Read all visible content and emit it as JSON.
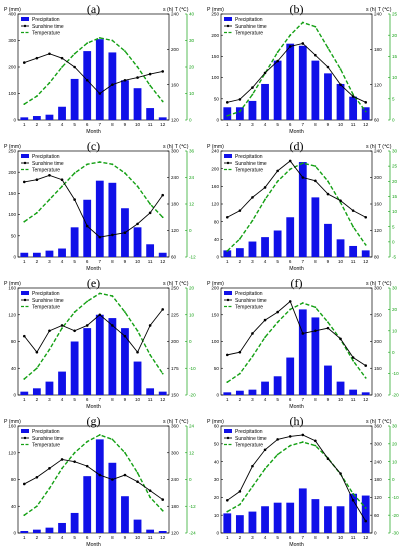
{
  "colors": {
    "precip": "#1010e8",
    "sunshine": "#000000",
    "temperature": "#14a014",
    "axis_left": "#000000",
    "axis_s": "#000000",
    "axis_t": "#14a014"
  },
  "legend": {
    "precipitation": "Precipitation",
    "sunshine": "Sunshine time",
    "temperature": "Temperature"
  },
  "axis_titles": {
    "left": "P (mm)",
    "right": "s (h) T (℃)",
    "x": "Month"
  },
  "chart_data": [
    {
      "type": "bar",
      "title": "(a)",
      "xlabel": "Month",
      "ylabel": "P (mm)",
      "y2label": "s (h)",
      "y3label": "T (℃)",
      "categories": [
        "1",
        "2",
        "3",
        "4",
        "5",
        "6",
        "7",
        "8",
        "9",
        "10",
        "11",
        "12"
      ],
      "p_ticks": [
        0,
        100,
        200,
        300,
        400
      ],
      "p_lim": [
        0,
        400
      ],
      "s_ticks": [
        120,
        160,
        200,
        240
      ],
      "s_lim": [
        120,
        240
      ],
      "t_ticks": [
        0,
        10,
        20,
        30,
        40
      ],
      "t_lim": [
        0,
        40
      ],
      "legend_position": "top-left",
      "series": [
        {
          "name": "Precipitation",
          "kind": "bar",
          "axis": "p",
          "values": [
            10,
            15,
            20,
            50,
            155,
            260,
            305,
            255,
            150,
            120,
            45,
            10
          ]
        },
        {
          "name": "Sunshine time",
          "kind": "line",
          "axis": "s",
          "values": [
            185,
            190,
            195,
            190,
            180,
            165,
            150,
            160,
            165,
            168,
            172,
            175
          ]
        },
        {
          "name": "Temperature",
          "kind": "line",
          "axis": "t",
          "values": [
            6,
            9,
            14,
            20,
            25,
            29,
            31,
            30,
            26,
            20,
            13,
            7
          ]
        }
      ]
    },
    {
      "type": "bar",
      "title": "(b)",
      "xlabel": "Month",
      "ylabel": "P (mm)",
      "y2label": "s (h)",
      "y3label": "T (℃)",
      "categories": [
        "1",
        "2",
        "3",
        "4",
        "5",
        "6",
        "7",
        "8",
        "9",
        "10",
        "11",
        "12"
      ],
      "p_ticks": [
        0,
        50,
        100,
        150,
        200,
        250
      ],
      "p_lim": [
        0,
        250
      ],
      "s_ticks": [
        60,
        120,
        180,
        240
      ],
      "s_lim": [
        60,
        240
      ],
      "t_ticks": [
        0,
        5,
        10,
        15,
        20,
        25
      ],
      "t_lim": [
        0,
        25
      ],
      "legend_position": "top-left",
      "series": [
        {
          "name": "Precipitation",
          "kind": "bar",
          "axis": "p",
          "values": [
            30,
            30,
            45,
            85,
            140,
            180,
            175,
            140,
            110,
            85,
            55,
            30
          ]
        },
        {
          "name": "Sunshine time",
          "kind": "line",
          "axis": "s",
          "values": [
            90,
            95,
            115,
            140,
            160,
            185,
            190,
            170,
            150,
            120,
            100,
            90
          ]
        },
        {
          "name": "Temperature",
          "kind": "line",
          "axis": "t",
          "values": [
            1,
            2,
            6,
            11,
            16,
            20,
            23,
            22,
            17,
            12,
            6,
            2
          ]
        }
      ]
    },
    {
      "type": "bar",
      "title": "(c)",
      "xlabel": "Month",
      "ylabel": "P (mm)",
      "y2label": "s (h)",
      "y3label": "T (℃)",
      "categories": [
        "1",
        "2",
        "3",
        "4",
        "5",
        "6",
        "7",
        "8",
        "9",
        "10",
        "11",
        "12"
      ],
      "p_ticks": [
        0,
        50,
        100,
        150,
        200,
        250
      ],
      "p_lim": [
        0,
        250
      ],
      "s_ticks": [
        60,
        120,
        180,
        240,
        300
      ],
      "s_lim": [
        60,
        300
      ],
      "t_ticks": [
        -12,
        0,
        12,
        24,
        36
      ],
      "t_lim": [
        -12,
        36
      ],
      "legend_position": "top-left",
      "series": [
        {
          "name": "Precipitation",
          "kind": "bar",
          "axis": "p",
          "values": [
            10,
            10,
            15,
            20,
            70,
            135,
            180,
            175,
            115,
            70,
            30,
            10
          ]
        },
        {
          "name": "Sunshine time",
          "kind": "line",
          "axis": "s",
          "values": [
            230,
            235,
            245,
            235,
            190,
            130,
            105,
            110,
            115,
            135,
            160,
            200
          ]
        },
        {
          "name": "Temperature",
          "kind": "line",
          "axis": "t",
          "values": [
            4,
            8,
            14,
            20,
            26,
            30,
            31,
            30,
            26,
            20,
            12,
            6
          ]
        }
      ]
    },
    {
      "type": "bar",
      "title": "(d)",
      "xlabel": "Month",
      "ylabel": "P (mm)",
      "y2label": "s (h)",
      "y3label": "T (℃)",
      "categories": [
        "1",
        "2",
        "3",
        "4",
        "5",
        "6",
        "7",
        "8",
        "9",
        "10",
        "11",
        "12"
      ],
      "p_ticks": [
        0,
        40,
        80,
        120,
        160,
        200,
        240
      ],
      "p_lim": [
        0,
        240
      ],
      "s_ticks": [
        80,
        120,
        160,
        200,
        240
      ],
      "s_lim": [
        80,
        240
      ],
      "t_ticks": [
        -5,
        0,
        5,
        10,
        15,
        20,
        25,
        30
      ],
      "t_lim": [
        -5,
        30
      ],
      "legend_position": "top-left",
      "series": [
        {
          "name": "Precipitation",
          "kind": "bar",
          "axis": "p",
          "values": [
            15,
            20,
            35,
            45,
            60,
            90,
            215,
            135,
            75,
            40,
            25,
            15
          ]
        },
        {
          "name": "Sunshine time",
          "kind": "line",
          "axis": "s",
          "values": [
            140,
            150,
            170,
            185,
            210,
            225,
            200,
            195,
            175,
            165,
            150,
            140
          ]
        },
        {
          "name": "Temperature",
          "kind": "line",
          "axis": "t",
          "values": [
            -3,
            1,
            7,
            14,
            20,
            24,
            26,
            25,
            20,
            13,
            5,
            -1
          ]
        }
      ]
    },
    {
      "type": "bar",
      "title": "(e)",
      "xlabel": "Month",
      "ylabel": "P (mm)",
      "y2label": "s (h)",
      "y3label": "T (℃)",
      "categories": [
        "1",
        "2",
        "3",
        "4",
        "5",
        "6",
        "7",
        "8",
        "9",
        "10",
        "11",
        "12"
      ],
      "p_ticks": [
        0,
        40,
        80,
        120,
        160
      ],
      "p_lim": [
        0,
        160
      ],
      "s_ticks": [
        150,
        175,
        200,
        225,
        250
      ],
      "s_lim": [
        150,
        250
      ],
      "t_ticks": [
        -20,
        -10,
        0,
        10,
        20
      ],
      "t_lim": [
        -20,
        20
      ],
      "legend_position": "top-left",
      "series": [
        {
          "name": "Precipitation",
          "kind": "bar",
          "axis": "p",
          "values": [
            5,
            10,
            20,
            35,
            80,
            100,
            120,
            115,
            100,
            50,
            10,
            5
          ]
        },
        {
          "name": "Sunshine time",
          "kind": "line",
          "axis": "s",
          "values": [
            205,
            190,
            210,
            215,
            210,
            215,
            225,
            215,
            205,
            190,
            215,
            230
          ]
        },
        {
          "name": "Temperature",
          "kind": "line",
          "axis": "t",
          "values": [
            -14,
            -10,
            -3,
            5,
            11,
            15,
            18,
            17,
            11,
            4,
            -5,
            -12
          ]
        }
      ]
    },
    {
      "type": "bar",
      "title": "(f)",
      "xlabel": "Month",
      "ylabel": "P (mm)",
      "y2label": "s (h)",
      "y3label": "T (℃)",
      "categories": [
        "1",
        "2",
        "3",
        "4",
        "5",
        "6",
        "7",
        "8",
        "9",
        "10",
        "11",
        "12"
      ],
      "p_ticks": [
        0,
        50,
        100,
        150,
        200
      ],
      "p_lim": [
        0,
        200
      ],
      "s_ticks": [
        100,
        150,
        200,
        250,
        300
      ],
      "s_lim": [
        100,
        300
      ],
      "t_ticks": [
        -20,
        -10,
        0,
        10,
        20,
        30
      ],
      "t_lim": [
        -20,
        30
      ],
      "legend_position": "top-left",
      "series": [
        {
          "name": "Precipitation",
          "kind": "bar",
          "axis": "p",
          "values": [
            5,
            8,
            10,
            25,
            35,
            70,
            160,
            145,
            55,
            25,
            10,
            5
          ]
        },
        {
          "name": "Sunshine time",
          "kind": "line",
          "axis": "s",
          "values": [
            175,
            180,
            215,
            240,
            255,
            275,
            215,
            220,
            225,
            205,
            170,
            155
          ]
        },
        {
          "name": "Temperature",
          "kind": "line",
          "axis": "t",
          "values": [
            -14,
            -10,
            -2,
            7,
            14,
            20,
            23,
            21,
            14,
            6,
            -4,
            -12
          ]
        }
      ]
    },
    {
      "type": "bar",
      "title": "(g)",
      "xlabel": "Month",
      "ylabel": "P (mm)",
      "y2label": "s (h)",
      "y3label": "T (℃)",
      "categories": [
        "1",
        "2",
        "3",
        "4",
        "5",
        "6",
        "7",
        "8",
        "9",
        "10",
        "11",
        "12"
      ],
      "p_ticks": [
        0,
        40,
        80,
        120,
        160
      ],
      "p_lim": [
        0,
        160
      ],
      "s_ticks": [
        120,
        180,
        240,
        300,
        360
      ],
      "s_lim": [
        120,
        360
      ],
      "t_ticks": [
        -24,
        -12,
        0,
        12,
        24
      ],
      "t_lim": [
        -24,
        24
      ],
      "legend_position": "top-left",
      "series": [
        {
          "name": "Precipitation",
          "kind": "bar",
          "axis": "p",
          "values": [
            3,
            5,
            8,
            15,
            30,
            85,
            140,
            105,
            55,
            20,
            5,
            3
          ]
        },
        {
          "name": "Sunshine time",
          "kind": "line",
          "axis": "s",
          "values": [
            230,
            245,
            265,
            285,
            280,
            270,
            250,
            240,
            250,
            235,
            215,
            195
          ]
        },
        {
          "name": "Temperature",
          "kind": "line",
          "axis": "t",
          "values": [
            -16,
            -12,
            -4,
            5,
            12,
            17,
            20,
            18,
            12,
            3,
            -8,
            -14
          ]
        }
      ]
    },
    {
      "type": "bar",
      "title": "(h)",
      "xlabel": "Month",
      "ylabel": "P (mm)",
      "y2label": "s (h)",
      "y3label": "T (℃)",
      "categories": [
        "1",
        "2",
        "3",
        "4",
        "5",
        "6",
        "7",
        "8",
        "9",
        "10",
        "11",
        "12"
      ],
      "p_ticks": [
        0,
        10,
        20,
        30,
        40,
        50,
        60
      ],
      "p_lim": [
        0,
        60
      ],
      "s_ticks": [
        0,
        60,
        120,
        180,
        240,
        300,
        360
      ],
      "s_lim": [
        0,
        360
      ],
      "t_ticks": [
        -30,
        -20,
        -10,
        0,
        10,
        20,
        30
      ],
      "t_lim": [
        -30,
        30
      ],
      "legend_position": "top-left",
      "series": [
        {
          "name": "Precipitation",
          "kind": "bar",
          "axis": "p",
          "values": [
            11,
            10,
            12,
            15,
            17,
            17,
            25,
            19,
            15,
            15,
            22,
            21
          ]
        },
        {
          "name": "Sunshine time",
          "kind": "line",
          "axis": "s",
          "values": [
            110,
            140,
            225,
            280,
            315,
            325,
            330,
            310,
            250,
            200,
            110,
            40
          ]
        },
        {
          "name": "Temperature",
          "kind": "line",
          "axis": "t",
          "values": [
            -18,
            -14,
            -4,
            6,
            14,
            19,
            21,
            19,
            12,
            3,
            -8,
            -16
          ]
        }
      ]
    }
  ]
}
